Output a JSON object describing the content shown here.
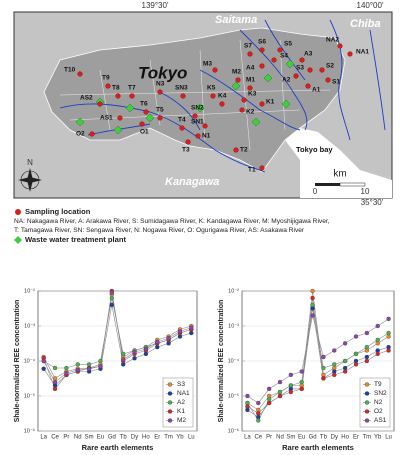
{
  "map": {
    "coords": [
      "139°30'",
      "140°00'",
      "35°30'"
    ],
    "regions": [
      "Saitama",
      "Chiba",
      "Tokyo",
      "Kanagawa",
      "Tokyo bay"
    ],
    "north": "N",
    "scale": {
      "unit": "km",
      "ticks": [
        "0",
        "10"
      ]
    },
    "points": [
      "T10",
      "S7",
      "S6",
      "S5",
      "S4",
      "A4",
      "A3",
      "NA2",
      "NA1",
      "S3",
      "S2",
      "A2",
      "S1",
      "A1",
      "M3",
      "M2",
      "M1",
      "K5",
      "K4",
      "K3",
      "K2",
      "K1",
      "N3",
      "SN3",
      "SN2",
      "SN1",
      "N1",
      "T9",
      "AS2",
      "T8",
      "T7",
      "T6",
      "T5",
      "AS1",
      "O1",
      "O2",
      "T4",
      "T3",
      "T2",
      "T1"
    ],
    "legend": {
      "sampling": "Sampling location",
      "abbrev1": "NA: Nakagawa River, A: Arakawa River, S: Sumidagawa River, K: Kandagawa River, M: Myoshijigawa River,",
      "abbrev2": "T: Tamagawa River, SN: Sengawa River, N: Nogawa River, O: Ogurigawa River, AS: Asakawa River",
      "plant": "Waste water treatment plant"
    }
  },
  "chart_data": [
    {
      "type": "line",
      "ylabel": "Shale-normalized REE concentration",
      "xlabel": "Rare earth elements",
      "categories": [
        "La",
        "Ce",
        "Pr",
        "Nd",
        "Sm",
        "Eu",
        "Gd",
        "Tb",
        "Dy",
        "Ho",
        "Er",
        "Tm",
        "Yb",
        "Lu"
      ],
      "log_y": true,
      "grid": true,
      "legend": "lower right",
      "ylim": [
        1e-06,
        0.01
      ],
      "yticks": [
        {
          "value": 1e-06,
          "label": "10⁻⁶"
        },
        {
          "value": 1e-05,
          "label": "10⁻⁵"
        },
        {
          "value": 0.0001,
          "label": "10⁻⁴"
        },
        {
          "value": 0.001,
          "label": "10⁻³"
        },
        {
          "value": 0.01,
          "label": "10⁻²"
        }
      ],
      "series": [
        {
          "name": "S3",
          "color": "#e8892b",
          "values": [
            0.00013,
            3.2e-05,
            5e-05,
            6e-05,
            6.3e-05,
            8e-05,
            0.008,
            0.00013,
            0.0002,
            0.00025,
            0.0004,
            0.0005,
            0.0008,
            0.001
          ]
        },
        {
          "name": "NA1",
          "color": "#1f3ea8",
          "values": [
            6e-05,
            2e-05,
            4e-05,
            5e-05,
            5e-05,
            6e-05,
            0.004,
            8e-05,
            0.00012,
            0.00016,
            0.00025,
            0.00032,
            0.0005,
            0.00063
          ]
        },
        {
          "name": "A2",
          "color": "#4caf50",
          "values": [
            0.0001,
            6.3e-05,
            6.3e-05,
            8e-05,
            8e-05,
            0.0001,
            0.0063,
            0.00016,
            0.0002,
            0.00025,
            0.00032,
            0.0004,
            0.00063,
            0.0008
          ]
        },
        {
          "name": "K1",
          "color": "#d62728",
          "values": [
            0.00012,
            1.6e-05,
            4e-05,
            5e-05,
            6.3e-05,
            7e-05,
            0.01,
            0.0001,
            0.00016,
            0.0002,
            0.00032,
            0.0004,
            0.00063,
            0.0008
          ]
        },
        {
          "name": "M2",
          "color": "#8e44ad",
          "values": [
            0.0001,
            2.5e-05,
            4.5e-05,
            5.5e-05,
            6e-05,
            7e-05,
            0.009,
            0.00011,
            0.00018,
            0.00022,
            0.00035,
            0.00045,
            0.0007,
            0.0009
          ]
        }
      ]
    },
    {
      "type": "line",
      "ylabel": "Shale-normalized REE concentration",
      "xlabel": "Rare earth elements",
      "categories": [
        "La",
        "Ce",
        "Pr",
        "Nd",
        "Sm",
        "Eu",
        "Gd",
        "Tb",
        "Dy",
        "Ho",
        "Er",
        "Tm",
        "Yb",
        "Lu"
      ],
      "log_y": true,
      "grid": true,
      "legend": "lower right",
      "ylim": [
        1e-06,
        0.01
      ],
      "yticks": [
        {
          "value": 1e-06,
          "label": "10⁻⁶"
        },
        {
          "value": 1e-05,
          "label": "10⁻⁵"
        },
        {
          "value": 0.0001,
          "label": "10⁻⁴"
        },
        {
          "value": 0.001,
          "label": "10⁻³"
        },
        {
          "value": 0.01,
          "label": "10⁻²"
        }
      ],
      "series": [
        {
          "name": "T9",
          "color": "#e8892b",
          "values": [
            6.3e-06,
            4e-06,
            1e-05,
            1.3e-05,
            2e-05,
            2e-05,
            0.01,
            4e-05,
            6.3e-05,
            0.0001,
            0.00016,
            0.0002,
            0.00032,
            0.0005
          ]
        },
        {
          "name": "SN2",
          "color": "#1f3ea8",
          "values": [
            4e-06,
            2.5e-06,
            6.3e-06,
            1e-05,
            1.6e-05,
            1.6e-05,
            0.0032,
            3.2e-05,
            5e-05,
            6.3e-05,
            0.0001,
            0.00013,
            0.0002,
            0.00025
          ]
        },
        {
          "name": "N2",
          "color": "#4caf50",
          "values": [
            6.3e-06,
            2e-06,
            8e-06,
            1.3e-05,
            2e-05,
            2.5e-05,
            0.004,
            6.3e-05,
            8e-05,
            0.0001,
            0.00016,
            0.00025,
            0.0004,
            0.00063
          ]
        },
        {
          "name": "O2",
          "color": "#d62728",
          "values": [
            5e-06,
            3.2e-06,
            6.3e-06,
            1e-05,
            1.3e-05,
            1.6e-05,
            0.0063,
            3.2e-05,
            4e-05,
            5e-05,
            8e-05,
            0.0001,
            0.00016,
            0.0002
          ]
        },
        {
          "name": "AS1",
          "color": "#8e44ad",
          "values": [
            1e-05,
            6.3e-06,
            1.6e-05,
            2.5e-05,
            4e-05,
            5e-05,
            0.002,
            0.00013,
            0.0002,
            0.00032,
            0.0005,
            0.00063,
            0.001,
            0.0016
          ]
        }
      ]
    }
  ]
}
